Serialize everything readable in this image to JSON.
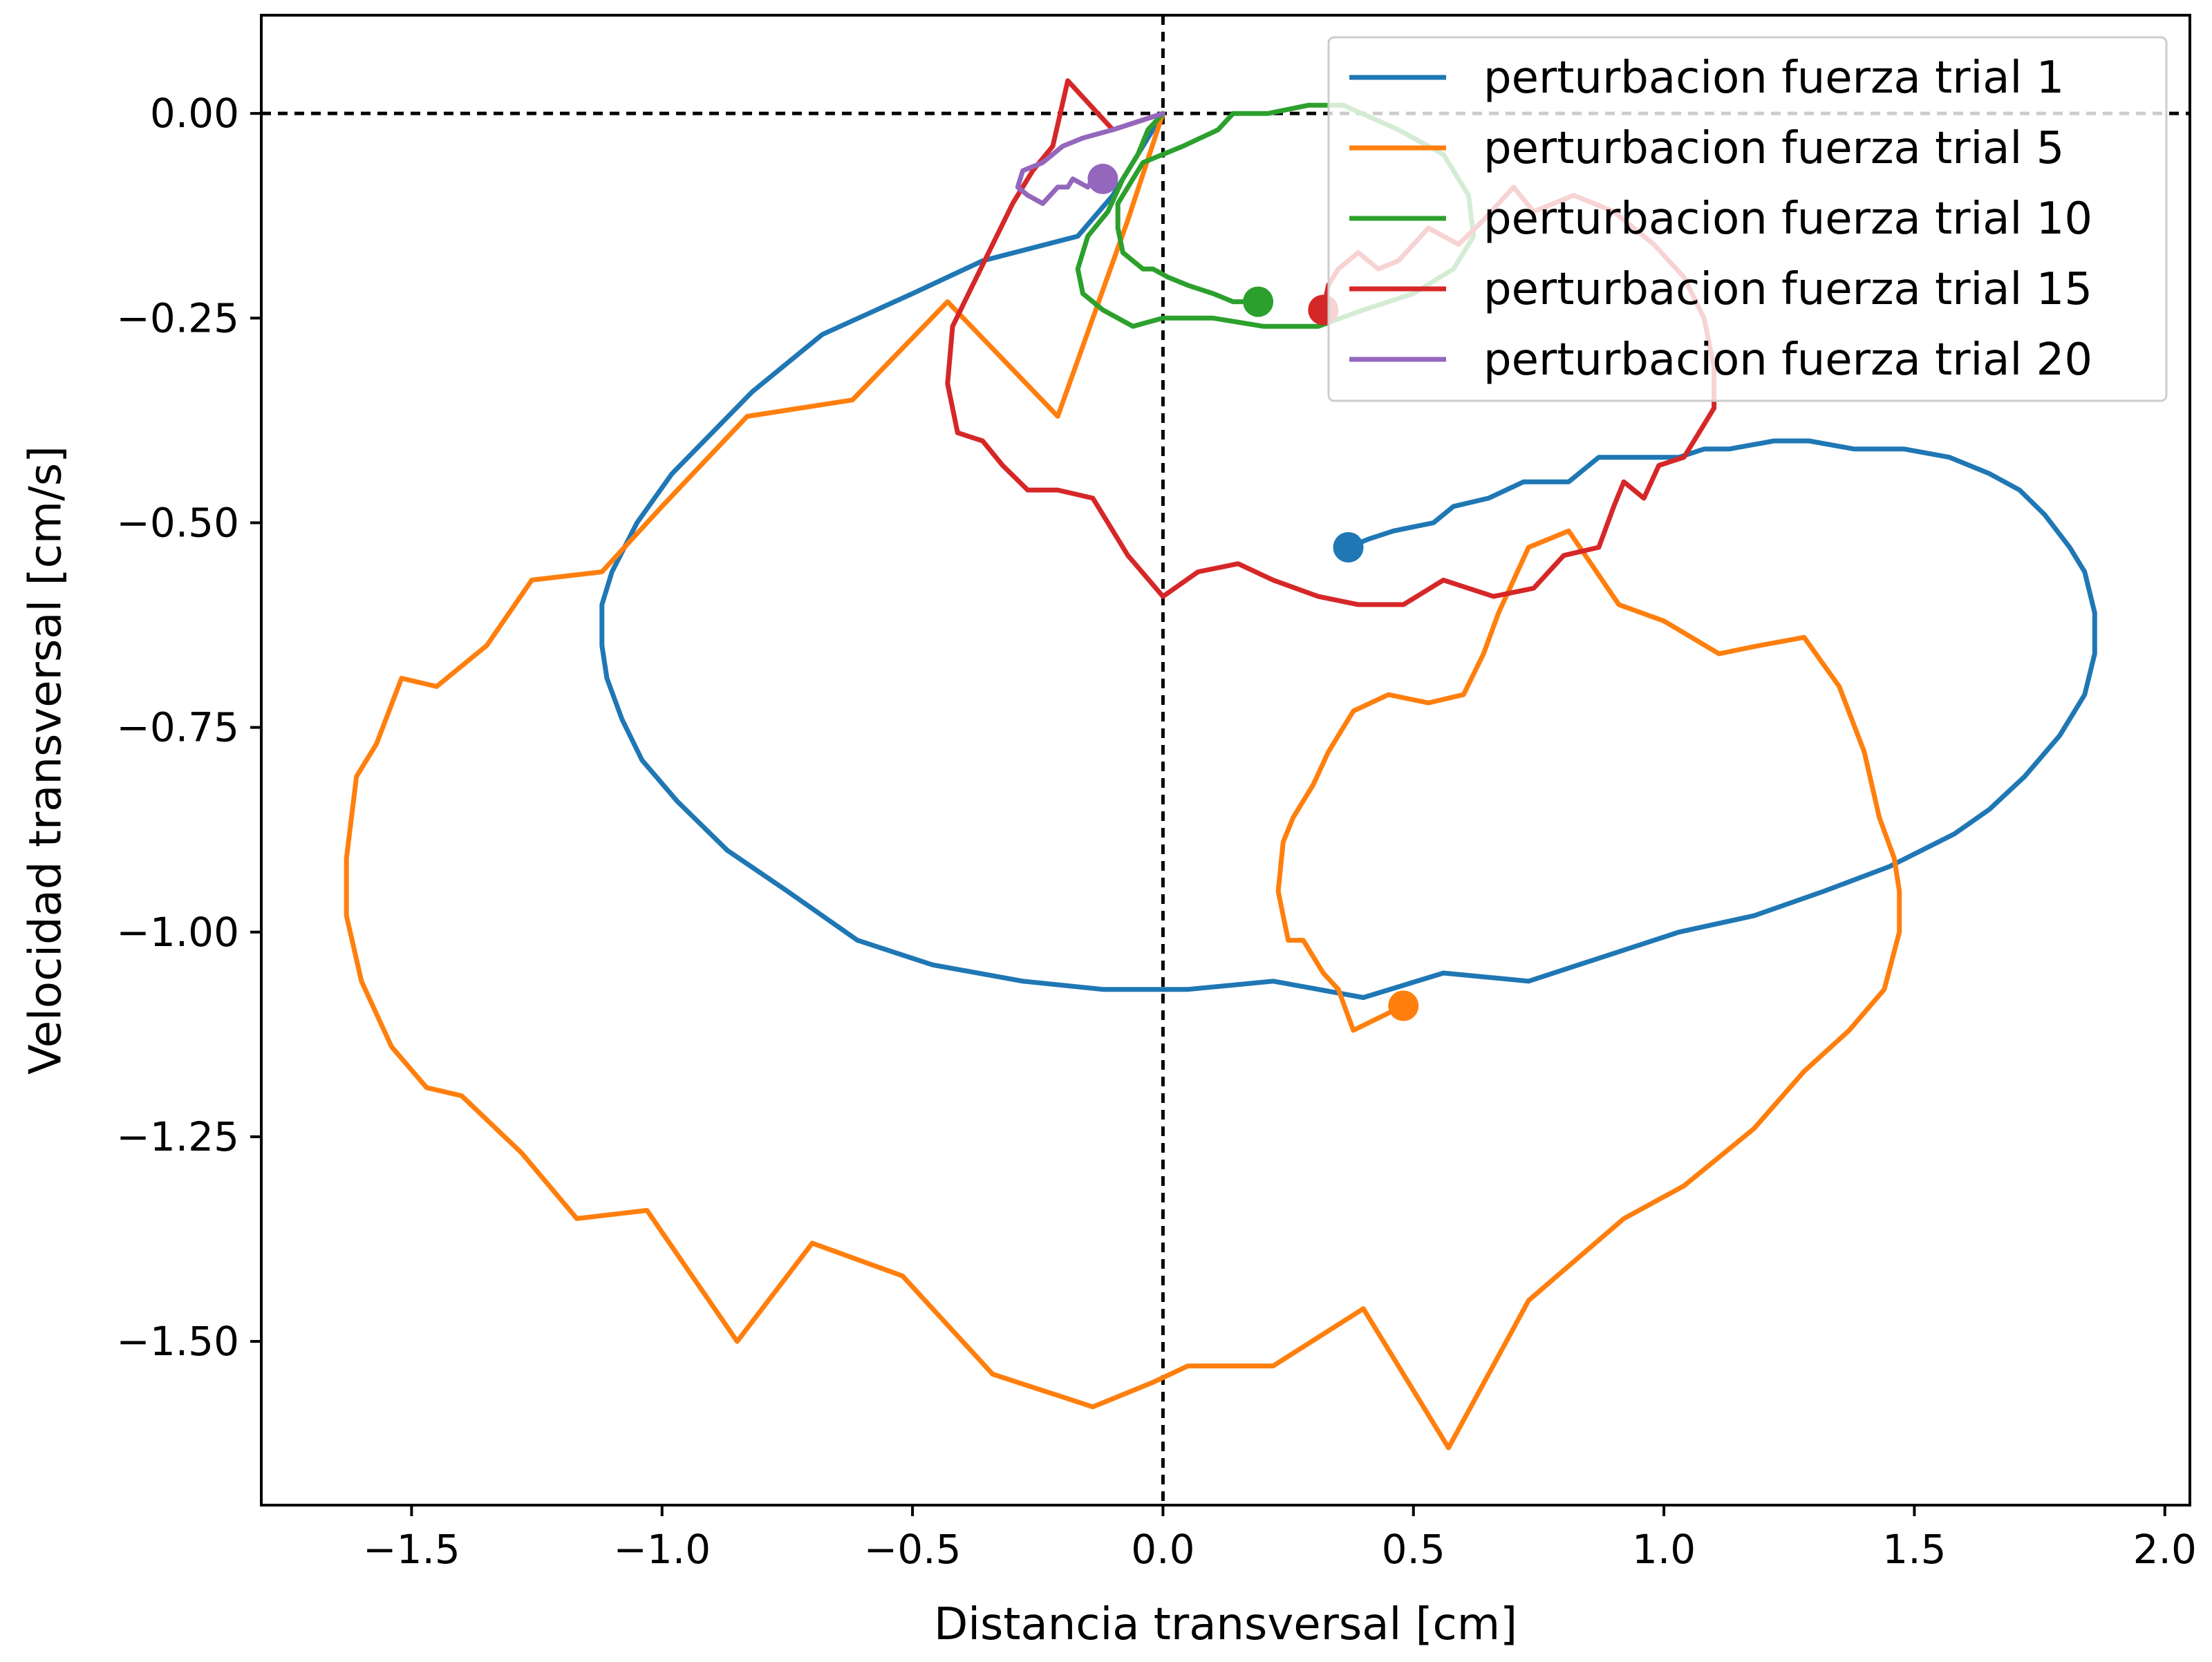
{
  "chart_data": {
    "type": "line",
    "xlabel": "Distancia transversal [cm]",
    "ylabel": "Velocidad transversal [cm/s]",
    "xlim": [
      -1.8,
      2.05
    ],
    "ylim": [
      -1.7,
      0.12
    ],
    "xticks": [
      -1.5,
      -1.0,
      -0.5,
      0.0,
      0.5,
      1.0,
      1.5,
      2.0
    ],
    "xtick_labels": [
      "−1.5",
      "−1.0",
      "−0.5",
      "0.0",
      "0.5",
      "1.0",
      "1.5",
      "2.0"
    ],
    "yticks": [
      0.0,
      -0.25,
      -0.5,
      -0.75,
      -1.0,
      -1.25,
      -1.5
    ],
    "ytick_labels": [
      "0.00",
      "−0.25",
      "−0.50",
      "−0.75",
      "−1.00",
      "−1.25",
      "−1.50"
    ],
    "grid": false,
    "legend_position": "top-right",
    "reference_lines": [
      {
        "orientation": "horizontal",
        "value": 0.0,
        "style": "dashed",
        "color": "#000000"
      },
      {
        "orientation": "vertical",
        "value": 0.0,
        "style": "dashed",
        "color": "#000000"
      }
    ],
    "series": [
      {
        "name": "perturbacion fuerza trial 1",
        "color": "#1f77b4",
        "points": [
          [
            0.0,
            0.0
          ],
          [
            -0.1,
            -0.1
          ],
          [
            -0.17,
            -0.15
          ],
          [
            -0.36,
            -0.18
          ],
          [
            -0.5,
            -0.22
          ],
          [
            -0.68,
            -0.27
          ],
          [
            -0.82,
            -0.34
          ],
          [
            -0.9,
            -0.39
          ],
          [
            -0.98,
            -0.44
          ],
          [
            -1.05,
            -0.5
          ],
          [
            -1.1,
            -0.56
          ],
          [
            -1.12,
            -0.6
          ],
          [
            -1.12,
            -0.65
          ],
          [
            -1.11,
            -0.69
          ],
          [
            -1.08,
            -0.74
          ],
          [
            -1.04,
            -0.79
          ],
          [
            -0.97,
            -0.84
          ],
          [
            -0.87,
            -0.9
          ],
          [
            -0.75,
            -0.95
          ],
          [
            -0.61,
            -1.01
          ],
          [
            -0.46,
            -1.04
          ],
          [
            -0.28,
            -1.06
          ],
          [
            -0.12,
            -1.07
          ],
          [
            0.05,
            -1.07
          ],
          [
            0.22,
            -1.06
          ],
          [
            0.4,
            -1.08
          ],
          [
            0.56,
            -1.05
          ],
          [
            0.73,
            -1.06
          ],
          [
            0.88,
            -1.03
          ],
          [
            1.03,
            -1.0
          ],
          [
            1.18,
            -0.98
          ],
          [
            1.32,
            -0.95
          ],
          [
            1.45,
            -0.92
          ],
          [
            1.58,
            -0.88
          ],
          [
            1.65,
            -0.85
          ],
          [
            1.72,
            -0.81
          ],
          [
            1.79,
            -0.76
          ],
          [
            1.84,
            -0.71
          ],
          [
            1.86,
            -0.66
          ],
          [
            1.86,
            -0.61
          ],
          [
            1.84,
            -0.56
          ],
          [
            1.81,
            -0.53
          ],
          [
            1.76,
            -0.49
          ],
          [
            1.71,
            -0.46
          ],
          [
            1.65,
            -0.44
          ],
          [
            1.57,
            -0.42
          ],
          [
            1.48,
            -0.41
          ],
          [
            1.38,
            -0.41
          ],
          [
            1.29,
            -0.4
          ],
          [
            1.22,
            -0.4
          ],
          [
            1.13,
            -0.41
          ],
          [
            1.08,
            -0.41
          ],
          [
            1.03,
            -0.42
          ],
          [
            0.94,
            -0.42
          ],
          [
            0.87,
            -0.42
          ],
          [
            0.81,
            -0.45
          ],
          [
            0.72,
            -0.45
          ],
          [
            0.65,
            -0.47
          ],
          [
            0.58,
            -0.48
          ],
          [
            0.54,
            -0.5
          ],
          [
            0.46,
            -0.51
          ],
          [
            0.41,
            -0.52
          ],
          [
            0.37,
            -0.53
          ]
        ],
        "end_marker": [
          0.37,
          -0.53
        ]
      },
      {
        "name": "perturbacion fuerza trial 5",
        "color": "#ff7f0e",
        "points": [
          [
            0.0,
            0.0
          ],
          [
            -0.07,
            -0.13
          ],
          [
            -0.21,
            -0.37
          ],
          [
            -0.43,
            -0.23
          ],
          [
            -0.62,
            -0.35
          ],
          [
            -0.83,
            -0.37
          ],
          [
            -1.0,
            -0.48
          ],
          [
            -1.12,
            -0.56
          ],
          [
            -1.26,
            -0.57
          ],
          [
            -1.35,
            -0.65
          ],
          [
            -1.45,
            -0.7
          ],
          [
            -1.52,
            -0.69
          ],
          [
            -1.57,
            -0.77
          ],
          [
            -1.61,
            -0.81
          ],
          [
            -1.63,
            -0.91
          ],
          [
            -1.63,
            -0.98
          ],
          [
            -1.6,
            -1.06
          ],
          [
            -1.54,
            -1.14
          ],
          [
            -1.47,
            -1.19
          ],
          [
            -1.4,
            -1.2
          ],
          [
            -1.28,
            -1.27
          ],
          [
            -1.17,
            -1.35
          ],
          [
            -1.03,
            -1.34
          ],
          [
            -0.85,
            -1.5
          ],
          [
            -0.7,
            -1.38
          ],
          [
            -0.52,
            -1.42
          ],
          [
            -0.34,
            -1.54
          ],
          [
            -0.14,
            -1.58
          ],
          [
            -0.02,
            -1.55
          ],
          [
            0.05,
            -1.53
          ],
          [
            0.22,
            -1.53
          ],
          [
            0.4,
            -1.46
          ],
          [
            0.57,
            -1.63
          ],
          [
            0.73,
            -1.45
          ],
          [
            0.92,
            -1.35
          ],
          [
            1.04,
            -1.31
          ],
          [
            1.18,
            -1.24
          ],
          [
            1.28,
            -1.17
          ],
          [
            1.37,
            -1.12
          ],
          [
            1.44,
            -1.07
          ],
          [
            1.47,
            -1.0
          ],
          [
            1.47,
            -0.95
          ],
          [
            1.46,
            -0.91
          ],
          [
            1.43,
            -0.86
          ],
          [
            1.4,
            -0.78
          ],
          [
            1.35,
            -0.7
          ],
          [
            1.28,
            -0.64
          ],
          [
            1.19,
            -0.65
          ],
          [
            1.11,
            -0.66
          ],
          [
            1.0,
            -0.62
          ],
          [
            0.91,
            -0.6
          ],
          [
            0.81,
            -0.51
          ],
          [
            0.73,
            -0.53
          ],
          [
            0.67,
            -0.61
          ],
          [
            0.64,
            -0.66
          ],
          [
            0.6,
            -0.71
          ],
          [
            0.53,
            -0.72
          ],
          [
            0.45,
            -0.71
          ],
          [
            0.38,
            -0.73
          ],
          [
            0.33,
            -0.78
          ],
          [
            0.3,
            -0.82
          ],
          [
            0.26,
            -0.86
          ],
          [
            0.24,
            -0.89
          ],
          [
            0.23,
            -0.95
          ],
          [
            0.24,
            -0.98
          ],
          [
            0.25,
            -1.01
          ],
          [
            0.28,
            -1.01
          ],
          [
            0.32,
            -1.05
          ],
          [
            0.35,
            -1.07
          ],
          [
            0.38,
            -1.12
          ],
          [
            0.48,
            -1.09
          ]
        ],
        "end_marker": [
          0.48,
          -1.09
        ]
      },
      {
        "name": "perturbacion fuerza trial 10",
        "color": "#2ca02c",
        "points": [
          [
            0.0,
            0.0
          ],
          [
            -0.03,
            -0.02
          ],
          [
            -0.05,
            -0.05
          ],
          [
            -0.08,
            -0.08
          ],
          [
            -0.11,
            -0.12
          ],
          [
            -0.15,
            -0.15
          ],
          [
            -0.17,
            -0.19
          ],
          [
            -0.16,
            -0.22
          ],
          [
            -0.12,
            -0.24
          ],
          [
            -0.06,
            -0.26
          ],
          [
            0.0,
            -0.25
          ],
          [
            0.1,
            -0.25
          ],
          [
            0.2,
            -0.26
          ],
          [
            0.31,
            -0.26
          ],
          [
            0.4,
            -0.24
          ],
          [
            0.5,
            -0.22
          ],
          [
            0.58,
            -0.19
          ],
          [
            0.62,
            -0.15
          ],
          [
            0.61,
            -0.1
          ],
          [
            0.56,
            -0.05
          ],
          [
            0.47,
            -0.02
          ],
          [
            0.36,
            0.01
          ],
          [
            0.29,
            0.01
          ],
          [
            0.21,
            0.0
          ],
          [
            0.14,
            0.0
          ],
          [
            0.11,
            -0.02
          ],
          [
            0.04,
            -0.04
          ],
          [
            0.0,
            -0.05
          ],
          [
            -0.04,
            -0.06
          ],
          [
            -0.07,
            -0.09
          ],
          [
            -0.09,
            -0.11
          ],
          [
            -0.09,
            -0.14
          ],
          [
            -0.08,
            -0.17
          ],
          [
            -0.04,
            -0.19
          ],
          [
            -0.02,
            -0.19
          ],
          [
            0.01,
            -0.2
          ],
          [
            0.05,
            -0.21
          ],
          [
            0.1,
            -0.22
          ],
          [
            0.14,
            -0.23
          ],
          [
            0.19,
            -0.23
          ]
        ],
        "end_marker": [
          0.19,
          -0.23
        ]
      },
      {
        "name": "perturbacion fuerza trial 15",
        "color": "#d62728",
        "points": [
          [
            0.0,
            0.0
          ],
          [
            -0.1,
            -0.02
          ],
          [
            -0.19,
            0.04
          ],
          [
            -0.22,
            -0.04
          ],
          [
            -0.26,
            -0.07
          ],
          [
            -0.3,
            -0.11
          ],
          [
            -0.34,
            -0.16
          ],
          [
            -0.38,
            -0.21
          ],
          [
            -0.42,
            -0.26
          ],
          [
            -0.43,
            -0.33
          ],
          [
            -0.41,
            -0.39
          ],
          [
            -0.36,
            -0.4
          ],
          [
            -0.32,
            -0.43
          ],
          [
            -0.27,
            -0.46
          ],
          [
            -0.21,
            -0.46
          ],
          [
            -0.14,
            -0.47
          ],
          [
            -0.07,
            -0.54
          ],
          [
            0.0,
            -0.59
          ],
          [
            0.07,
            -0.56
          ],
          [
            0.15,
            -0.55
          ],
          [
            0.22,
            -0.57
          ],
          [
            0.31,
            -0.59
          ],
          [
            0.39,
            -0.6
          ],
          [
            0.48,
            -0.6
          ],
          [
            0.56,
            -0.57
          ],
          [
            0.66,
            -0.59
          ],
          [
            0.74,
            -0.58
          ],
          [
            0.8,
            -0.54
          ],
          [
            0.87,
            -0.53
          ],
          [
            0.9,
            -0.48
          ],
          [
            0.92,
            -0.45
          ],
          [
            0.96,
            -0.47
          ],
          [
            0.99,
            -0.43
          ],
          [
            1.04,
            -0.42
          ],
          [
            1.08,
            -0.38
          ],
          [
            1.1,
            -0.36
          ],
          [
            1.1,
            -0.31
          ],
          [
            1.08,
            -0.25
          ],
          [
            1.04,
            -0.2
          ],
          [
            0.98,
            -0.16
          ],
          [
            0.9,
            -0.12
          ],
          [
            0.82,
            -0.1
          ],
          [
            0.74,
            -0.12
          ],
          [
            0.7,
            -0.09
          ],
          [
            0.64,
            -0.13
          ],
          [
            0.59,
            -0.16
          ],
          [
            0.53,
            -0.14
          ],
          [
            0.47,
            -0.18
          ],
          [
            0.43,
            -0.19
          ],
          [
            0.39,
            -0.17
          ],
          [
            0.35,
            -0.19
          ],
          [
            0.33,
            -0.21
          ],
          [
            0.32,
            -0.24
          ]
        ],
        "end_marker": [
          0.32,
          -0.24
        ]
      },
      {
        "name": "perturbacion fuerza trial 20",
        "color": "#9467bd",
        "points": [
          [
            0.0,
            0.0
          ],
          [
            -0.05,
            -0.01
          ],
          [
            -0.1,
            -0.02
          ],
          [
            -0.16,
            -0.03
          ],
          [
            -0.2,
            -0.04
          ],
          [
            -0.24,
            -0.06
          ],
          [
            -0.28,
            -0.07
          ],
          [
            -0.29,
            -0.09
          ],
          [
            -0.27,
            -0.1
          ],
          [
            -0.24,
            -0.11
          ],
          [
            -0.21,
            -0.09
          ],
          [
            -0.19,
            -0.09
          ],
          [
            -0.18,
            -0.08
          ],
          [
            -0.15,
            -0.09
          ],
          [
            -0.14,
            -0.08
          ],
          [
            -0.12,
            -0.08
          ]
        ],
        "end_marker": [
          -0.12,
          -0.08
        ]
      }
    ]
  }
}
